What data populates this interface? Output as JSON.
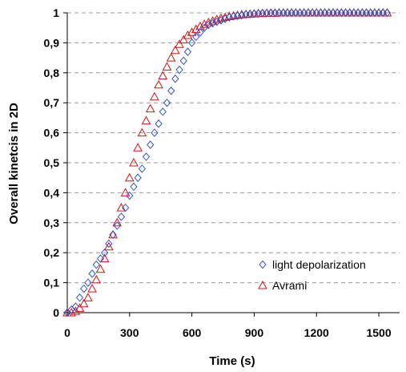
{
  "chart_data": {
    "type": "scatter",
    "xlabel": "Time (s)",
    "ylabel": "Overall kinetcis in 2D",
    "xlim": [
      0,
      1600
    ],
    "ylim": [
      0,
      1
    ],
    "xticks": [
      "0",
      "300",
      "600",
      "900",
      "1200",
      "1500"
    ],
    "yticks": [
      "0",
      "0,1",
      "0,2",
      "0,3",
      "0,4",
      "0,5",
      "0,6",
      "0,7",
      "0,8",
      "0,9",
      "1"
    ],
    "grid": "horizontal dashed",
    "legend_position": "bottom-right",
    "colors": {
      "light_depolarization": "#3355cc",
      "avrami": "#dd1111"
    },
    "series": [
      {
        "name": "light depolarization",
        "marker": "diamond",
        "x": [
          0,
          20,
          40,
          60,
          80,
          100,
          120,
          140,
          160,
          180,
          200,
          220,
          240,
          260,
          280,
          300,
          320,
          340,
          360,
          380,
          400,
          420,
          440,
          460,
          480,
          500,
          520,
          540,
          560,
          580,
          600,
          620,
          640,
          660,
          680,
          700,
          720,
          740,
          760,
          780,
          800,
          820,
          840,
          860,
          880,
          900,
          920,
          940,
          960,
          980,
          1000,
          1020,
          1040,
          1060,
          1080,
          1100,
          1120,
          1140,
          1160,
          1180,
          1200,
          1220,
          1240,
          1260,
          1280,
          1300,
          1320,
          1340,
          1360,
          1380,
          1400,
          1420,
          1440,
          1460,
          1480,
          1500,
          1520,
          1540
        ],
        "y": [
          0.0,
          0.01,
          0.02,
          0.05,
          0.08,
          0.1,
          0.13,
          0.16,
          0.18,
          0.2,
          0.23,
          0.26,
          0.29,
          0.32,
          0.35,
          0.39,
          0.42,
          0.45,
          0.48,
          0.52,
          0.56,
          0.6,
          0.63,
          0.67,
          0.7,
          0.74,
          0.78,
          0.81,
          0.84,
          0.87,
          0.9,
          0.92,
          0.935,
          0.95,
          0.96,
          0.965,
          0.97,
          0.975,
          0.98,
          0.985,
          0.988,
          0.99,
          0.992,
          0.995,
          0.996,
          0.997,
          0.998,
          0.999,
          0.999,
          1.0,
          1.0,
          1.0,
          1.0,
          1.0,
          1.0,
          1.0,
          1.0,
          1.0,
          1.0,
          1.0,
          1.0,
          1.0,
          1.0,
          1.0,
          1.0,
          1.0,
          1.0,
          1.0,
          1.0,
          1.0,
          1.0,
          1.0,
          1.0,
          1.0,
          1.0,
          1.0,
          1.0,
          1.0
        ]
      },
      {
        "name": "Avrami",
        "marker": "triangle",
        "x": [
          0,
          20,
          40,
          60,
          80,
          100,
          120,
          140,
          160,
          180,
          200,
          220,
          240,
          260,
          280,
          300,
          320,
          340,
          360,
          380,
          400,
          420,
          440,
          460,
          480,
          500,
          520,
          540,
          560,
          580,
          600,
          620,
          640,
          660,
          680,
          700,
          720,
          740,
          760,
          780,
          800,
          820,
          840,
          860,
          880,
          900,
          920,
          940,
          960,
          980,
          1000,
          1020,
          1040,
          1060,
          1080,
          1100,
          1120,
          1140,
          1160,
          1180,
          1200,
          1220,
          1240,
          1260,
          1280,
          1300,
          1320,
          1340,
          1360,
          1380,
          1400,
          1420,
          1440,
          1460,
          1480,
          1500,
          1520,
          1540
        ],
        "y": [
          0.0,
          0.0,
          0.005,
          0.015,
          0.03,
          0.05,
          0.08,
          0.11,
          0.145,
          0.18,
          0.22,
          0.26,
          0.3,
          0.35,
          0.4,
          0.45,
          0.5,
          0.55,
          0.6,
          0.64,
          0.68,
          0.72,
          0.76,
          0.79,
          0.82,
          0.85,
          0.875,
          0.895,
          0.91,
          0.925,
          0.935,
          0.945,
          0.955,
          0.962,
          0.968,
          0.973,
          0.978,
          0.982,
          0.985,
          0.988,
          0.99,
          0.992,
          0.994,
          0.995,
          0.996,
          0.997,
          0.998,
          0.998,
          0.999,
          0.999,
          0.999,
          1.0,
          1.0,
          1.0,
          1.0,
          1.0,
          1.0,
          1.0,
          1.0,
          1.0,
          1.0,
          1.0,
          1.0,
          1.0,
          1.0,
          1.0,
          1.0,
          1.0,
          1.0,
          1.0,
          1.0,
          1.0,
          1.0,
          1.0,
          1.0,
          1.0,
          1.0,
          1.0
        ]
      }
    ]
  }
}
